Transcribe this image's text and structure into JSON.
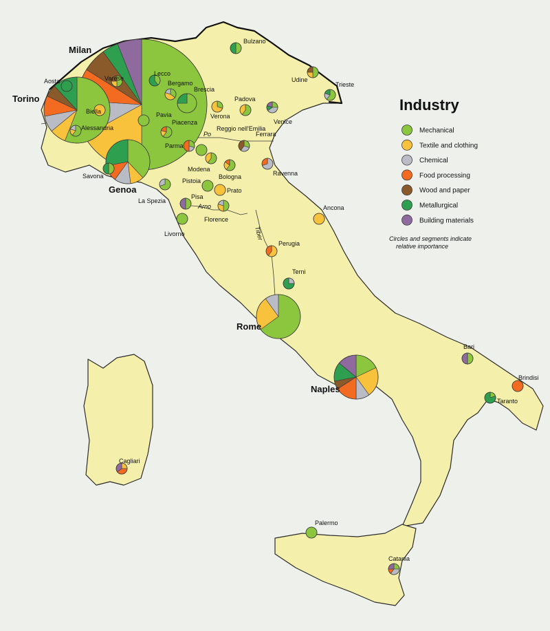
{
  "legend": {
    "title": "Industry",
    "items": [
      {
        "key": "mechanical",
        "label": "Mechanical",
        "color": "#8cc63f"
      },
      {
        "key": "textile",
        "label": "Textile and clothing",
        "color": "#f9c23c"
      },
      {
        "key": "chemical",
        "label": "Chemical",
        "color": "#b9bcc4"
      },
      {
        "key": "food",
        "label": "Food processing",
        "color": "#f26b21"
      },
      {
        "key": "wood",
        "label": "Wood and paper",
        "color": "#8b5a2b"
      },
      {
        "key": "metallurgical",
        "label": "Metallurgical",
        "color": "#2e9e4f"
      },
      {
        "key": "building",
        "label": "Building materials",
        "color": "#8e6a9e"
      }
    ],
    "note_line1": "Circles and segments indicate",
    "note_line2": "relative importance"
  },
  "rivers": {
    "po": "Po",
    "arno": "Arno",
    "tiber": "Tiber"
  },
  "centers": [
    {
      "name": "Milan",
      "major": true,
      "size": 10,
      "shares": {
        "mechanical": 50,
        "textile": 17,
        "chemical": 9,
        "food": 8,
        "wood": 6,
        "metallurgical": 4,
        "building": 6
      }
    },
    {
      "name": "Torino",
      "major": true,
      "size": 7,
      "shares": {
        "mechanical": 56,
        "textile": 8,
        "chemical": 8,
        "food": 10,
        "wood": 6,
        "metallurgical": 12
      }
    },
    {
      "name": "Genoa",
      "major": true,
      "size": 5,
      "shares": {
        "mechanical": 38,
        "textile": 10,
        "chemical": 12,
        "food": 12,
        "metallurgical": 28
      }
    },
    {
      "name": "Rome",
      "major": true,
      "size": 5,
      "shares": {
        "mechanical": 65,
        "textile": 25,
        "chemical": 10
      }
    },
    {
      "name": "Naples",
      "major": true,
      "size": 5,
      "shares": {
        "mechanical": 18,
        "textile": 22,
        "chemical": 10,
        "food": 16,
        "wood": 6,
        "metallurgical": 14,
        "building": 14
      }
    },
    {
      "name": "Bulzano",
      "size": 1,
      "shares": {
        "mechanical": 50,
        "metallurgical": 50
      }
    },
    {
      "name": "Udine",
      "size": 1,
      "shares": {
        "mechanical": 50,
        "wood": 25,
        "textile": 25
      }
    },
    {
      "name": "Trieste",
      "size": 1,
      "shares": {
        "mechanical": 60,
        "chemical": 20,
        "metallurgical": 20
      }
    },
    {
      "name": "Lecco",
      "size": 1,
      "shares": {
        "metallurgical": 60,
        "mechanical": 40
      }
    },
    {
      "name": "Bergamo",
      "size": 1,
      "shares": {
        "textile": 45,
        "mechanical": 35,
        "chemical": 20
      }
    },
    {
      "name": "Brescia",
      "size": 2,
      "shares": {
        "mechanical": 75,
        "metallurgical": 25
      }
    },
    {
      "name": "Aosta",
      "size": 1,
      "shares": {
        "metallurgical": 100
      }
    },
    {
      "name": "Biella",
      "size": 1,
      "shares": {
        "textile": 100
      }
    },
    {
      "name": "Alessandria",
      "size": 1,
      "shares": {
        "mechanical": 60,
        "chemical": 20,
        "textile": 20
      }
    },
    {
      "name": "Varese",
      "size": 1,
      "shares": {
        "mechanical": 50,
        "wood": 25,
        "textile": 25
      }
    },
    {
      "name": "Pavia",
      "size": 1,
      "shares": {
        "mechanical": 100
      }
    },
    {
      "name": "Piacenza",
      "size": 1,
      "shares": {
        "mechanical": 60,
        "textile": 20,
        "food": 20
      }
    },
    {
      "name": "Parma",
      "size": 1,
      "shares": {
        "food": 50,
        "mechanical": 30,
        "chemical": 20
      }
    },
    {
      "name": "Verona",
      "size": 1,
      "shares": {
        "textile": 70,
        "mechanical": 30
      }
    },
    {
      "name": "Padova",
      "size": 1,
      "shares": {
        "mechanical": 60,
        "textile": 40
      }
    },
    {
      "name": "Venice",
      "size": 1,
      "shares": {
        "chemical": 40,
        "mechanical": 25,
        "building": 20,
        "metallurgical": 15
      }
    },
    {
      "name": "Reggio nell'Emilia",
      "size": 1,
      "shares": {
        "mechanical": 100
      }
    },
    {
      "name": "Ferrara",
      "size": 1,
      "shares": {
        "wood": 40,
        "mechanical": 30,
        "chemical": 30
      }
    },
    {
      "name": "Ravenna",
      "size": 1,
      "shares": {
        "chemical": 70,
        "food": 30
      }
    },
    {
      "name": "Modena",
      "size": 1,
      "shares": {
        "mechanical": 60,
        "textile": 40
      }
    },
    {
      "name": "Bologna",
      "size": 1,
      "shares": {
        "mechanical": 60,
        "textile": 25,
        "food": 15
      }
    },
    {
      "name": "Savona",
      "size": 1,
      "shares": {
        "mechanical": 50,
        "metallurgical": 50
      }
    },
    {
      "name": "La Spezia",
      "size": 1,
      "shares": {
        "mechanical": 70,
        "chemical": 30
      }
    },
    {
      "name": "Pistoia",
      "size": 1,
      "shares": {
        "mechanical": 100
      }
    },
    {
      "name": "Prato",
      "size": 1,
      "shares": {
        "textile": 100
      }
    },
    {
      "name": "Pisa",
      "size": 1,
      "shares": {
        "building": 50,
        "mechanical": 50
      }
    },
    {
      "name": "Florence",
      "size": 1,
      "shares": {
        "mechanical": 50,
        "textile": 30,
        "chemical": 20
      }
    },
    {
      "name": "Livorno",
      "size": 1,
      "shares": {
        "mechanical": 100
      }
    },
    {
      "name": "Ancona",
      "size": 1,
      "shares": {
        "textile": 100
      }
    },
    {
      "name": "Perugia",
      "size": 1,
      "shares": {
        "textile": 60,
        "food": 40
      }
    },
    {
      "name": "Terni",
      "size": 1,
      "shares": {
        "metallurgical": 75,
        "chemical": 25
      }
    },
    {
      "name": "Bari",
      "size": 1,
      "shares": {
        "mechanical": 50,
        "building": 50
      }
    },
    {
      "name": "Brindisi",
      "size": 1,
      "shares": {
        "food": 100
      }
    },
    {
      "name": "Taranto",
      "size": 1,
      "shares": {
        "metallurgical": 80,
        "mechanical": 20
      }
    },
    {
      "name": "Cagliari",
      "size": 1,
      "shares": {
        "food": 40,
        "building": 35,
        "textile": 25
      }
    },
    {
      "name": "Palermo",
      "size": 1,
      "shares": {
        "mechanical": 100
      }
    },
    {
      "name": "Catania",
      "size": 1,
      "shares": {
        "chemical": 35,
        "mechanical": 25,
        "building": 25,
        "food": 15
      }
    }
  ]
}
